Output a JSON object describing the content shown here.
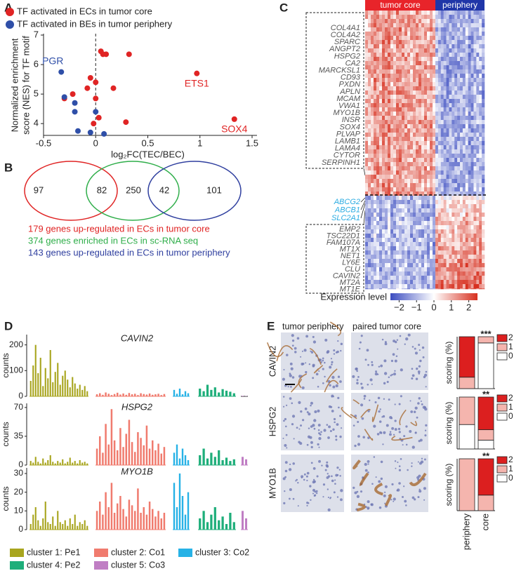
{
  "panels": {
    "A": {
      "label": "A",
      "type": "scatter",
      "x_label": "log₂FC(TEC/BEC)",
      "y_label": [
        "Normalized enrichment",
        "score (NES) for TF motif"
      ],
      "xlim": [
        -0.5,
        1.5
      ],
      "xticks": [
        -0.5,
        0,
        0.5,
        1,
        1.5
      ],
      "ylim": [
        3.6,
        7
      ],
      "yticks": [
        4,
        5,
        6,
        7
      ],
      "zero_line": true,
      "series": [
        {
          "name": "TF activated in ECs in tumor core",
          "color": "#e02424",
          "x": [
            0.05,
            0.1,
            0.07,
            0.32,
            0.97,
            -0.05,
            0,
            -0.08,
            0.17,
            -0.22,
            -0.3,
            0,
            0.03,
            0.29,
            -0.02,
            1.33
          ],
          "y": [
            6.45,
            6.35,
            6.35,
            6.35,
            5.7,
            5.55,
            5.4,
            5.2,
            5.2,
            5.0,
            4.85,
            4.85,
            4.2,
            4.05,
            4.0,
            4.15
          ],
          "point_labels": [
            null,
            null,
            null,
            null,
            "ETS1",
            null,
            null,
            null,
            null,
            null,
            null,
            null,
            null,
            null,
            null,
            "SOX4"
          ]
        },
        {
          "name": "TF activated in BEs in tumor periphery",
          "color": "#2f4fa8",
          "x": [
            -0.33,
            -0.3,
            -0.2,
            -0.2,
            0,
            -0.17,
            -0.05,
            0.08
          ],
          "y": [
            5.75,
            4.9,
            4.7,
            4.4,
            4.4,
            3.75,
            3.7,
            3.65
          ],
          "point_labels": [
            "PGR",
            null,
            null,
            null,
            null,
            null,
            null,
            null
          ]
        }
      ]
    },
    "B": {
      "label": "B",
      "type": "venn",
      "regions": [
        97,
        82,
        250,
        42,
        101
      ],
      "captions": [
        {
          "text": "179 genes up-regulated in ECs in tumor core",
          "color": "#e02424"
        },
        {
          "text": "374 genes enriched in ECs in sc-RNA seq",
          "color": "#2fae4a"
        },
        {
          "text": "143 genes up-regulated in ECs in tumor periphery",
          "color": "#2f3f9f"
        }
      ]
    },
    "C": {
      "label": "C",
      "type": "heatmap",
      "columns": [
        {
          "name": "tumor core",
          "color": "#e8242a"
        },
        {
          "name": "periphery",
          "color": "#2036a8"
        }
      ],
      "genes_core": [
        "COL4A1",
        "COL4A2",
        "SPARC",
        "ANGPT2",
        "HSPG2",
        "CA2",
        "MARCKSL1",
        "CD93",
        "PXDN",
        "APLN",
        "MCAM",
        "VWA1",
        "MYO1B",
        "INSR",
        "SOX4",
        "PLVAP",
        "LAMB1",
        "LAMA4",
        "CYTOR",
        "SERPINH1"
      ],
      "genes_transporter": [
        "ABCG2",
        "ABCB1",
        "SLC2A1"
      ],
      "genes_periphery": [
        "EMP2",
        "TSC22D1",
        "FAM107A",
        "MT1X",
        "NET1",
        "LY6E",
        "CLU",
        "CAVIN2",
        "MT2A",
        "MT1E"
      ],
      "legend_title": "Expression level",
      "clim": [
        -2.5,
        2.5
      ],
      "cticks": [
        {
          "value": -2,
          "label": "−2"
        },
        {
          "value": -1,
          "label": "−1"
        },
        0,
        1,
        2
      ]
    },
    "D": {
      "label": "D",
      "type": "bar",
      "clusters": [
        {
          "name": "cluster 1: Pe1",
          "color": "#a8a51e"
        },
        {
          "name": "cluster 2: Co1",
          "color": "#f07b6e"
        },
        {
          "name": "cluster 3: Co2",
          "color": "#27b2e6"
        },
        {
          "name": "cluster 4: Pe2",
          "color": "#1eae7a"
        },
        {
          "name": "cluster 5: Co3",
          "color": "#c07ec4"
        }
      ],
      "genes": [
        {
          "name": "CAVIN2",
          "y_label": "counts",
          "ylim": [
            0,
            240
          ],
          "yticks": [
            0,
            100,
            200
          ],
          "series": [
            {
              "values": [
                60,
                120,
                200,
                90,
                150,
                40,
                110,
                70,
                180,
                55,
                95,
                130,
                45,
                80,
                100,
                65,
                35,
                75,
                50,
                30,
                45,
                25,
                40,
                20
              ]
            },
            {
              "values": [
                8,
                12,
                6,
                15,
                10,
                5,
                9,
                14,
                7,
                11,
                6,
                13,
                8,
                10,
                5,
                12,
                9,
                7,
                11,
                6,
                8,
                10,
                5,
                9
              ]
            },
            {
              "values": [
                25,
                10,
                30,
                8,
                20,
                12
              ]
            },
            {
              "values": [
                30,
                20,
                45,
                25,
                35,
                15,
                28,
                22,
                18,
                12
              ]
            },
            {
              "values": [
                2,
                1
              ]
            }
          ]
        },
        {
          "name": "HSPG2",
          "y_label": "counts",
          "ylim": [
            0,
            75
          ],
          "yticks": [
            0,
            35,
            70
          ],
          "series": [
            {
              "values": [
                5,
                3,
                10,
                4,
                2,
                8,
                3,
                6,
                12,
                4,
                2,
                5,
                3,
                7,
                2,
                4,
                9,
                3,
                5,
                2,
                6,
                3,
                4,
                2
              ]
            },
            {
              "values": [
                20,
                35,
                15,
                50,
                25,
                68,
                30,
                18,
                45,
                22,
                38,
                55,
                28,
                16,
                40,
                33,
                24,
                48,
                20,
                30,
                18,
                26,
                14,
                22
              ]
            },
            {
              "values": [
                15,
                25,
                8,
                20,
                12,
                6
              ]
            },
            {
              "values": [
                12,
                20,
                8,
                15,
                10,
                18,
                6,
                9,
                5,
                7
              ]
            },
            {
              "values": [
                10,
                7
              ]
            }
          ]
        },
        {
          "name": "MYO1B",
          "y_label": "counts",
          "ylim": [
            0,
            33
          ],
          "yticks": [
            0,
            10,
            20,
            30
          ],
          "series": [
            {
              "values": [
                3,
                8,
                12,
                5,
                2,
                6,
                15,
                4,
                3,
                7,
                2,
                10,
                4,
                3,
                5,
                2,
                6,
                3,
                8,
                2,
                4,
                3,
                5,
                2
              ]
            },
            {
              "values": [
                10,
                15,
                8,
                20,
                12,
                25,
                9,
                14,
                18,
                11,
                7,
                16,
                13,
                10,
                22,
                9,
                12,
                8,
                15,
                11,
                7,
                10,
                6,
                9
              ]
            },
            {
              "values": [
                25,
                12,
                30,
                18,
                8,
                20
              ]
            },
            {
              "values": [
                6,
                10,
                4,
                8,
                12,
                5,
                7,
                3,
                9,
                4
              ]
            },
            {
              "values": [
                10,
                6
              ]
            }
          ]
        }
      ]
    },
    "E": {
      "label": "E",
      "type": "stacked-bar",
      "column_titles": [
        "tumor periphery",
        "paired tumor core"
      ],
      "categories": [
        "periphery",
        "core"
      ],
      "ylim": [
        0,
        100
      ],
      "rows": [
        {
          "name": "CAVIN2",
          "y_label": "scoring (%)",
          "significance": "***",
          "series": [
            {
              "name": "0",
              "color": "#ffffff",
              "values": [
                0,
                88
              ]
            },
            {
              "name": "1",
              "color": "#f5b5ae",
              "values": [
                22,
                12
              ]
            },
            {
              "name": "2",
              "color": "#dc1f1f",
              "values": [
                78,
                0
              ]
            }
          ]
        },
        {
          "name": "HSPG2",
          "y_label": "scoring (%)",
          "significance": "**",
          "series": [
            {
              "name": "0",
              "color": "#ffffff",
              "values": [
                47,
                17
              ]
            },
            {
              "name": "1",
              "color": "#f5b5ae",
              "values": [
                53,
                20
              ]
            },
            {
              "name": "2",
              "color": "#dc1f1f",
              "values": [
                0,
                63
              ]
            }
          ]
        },
        {
          "name": "MYO1B",
          "y_label": "scoring (%)",
          "significance": "**",
          "series": [
            {
              "name": "0",
              "color": "#ffffff",
              "values": [
                0,
                0
              ]
            },
            {
              "name": "1",
              "color": "#f5b5ae",
              "values": [
                100,
                30
              ]
            },
            {
              "name": "2",
              "color": "#dc1f1f",
              "values": [
                0,
                70
              ]
            }
          ]
        }
      ]
    }
  }
}
